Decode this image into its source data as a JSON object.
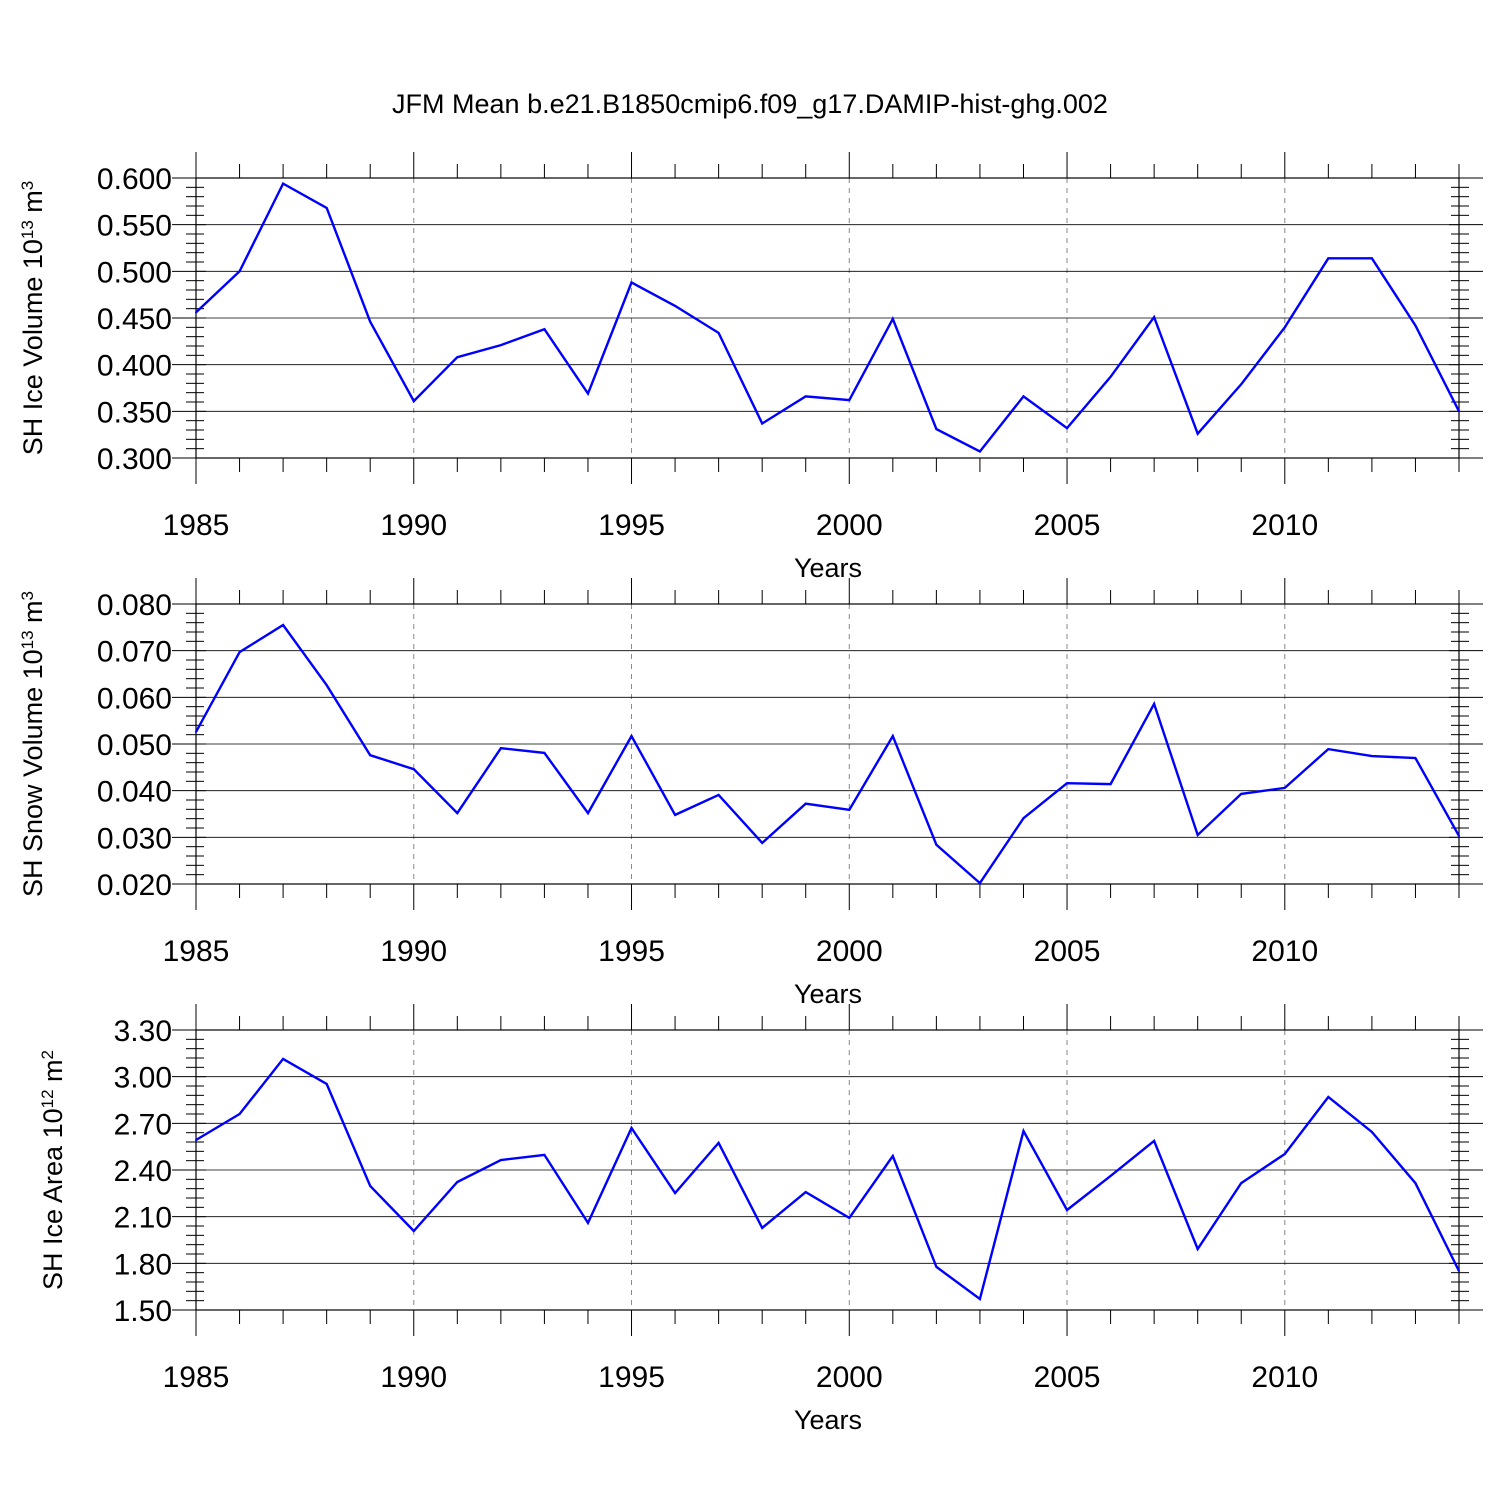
{
  "title": "JFM Mean b.e21.B1850cmip6.f09_g17.DAMIP-hist-ghg.002",
  "series_color": "#0000ff",
  "chart_data": [
    {
      "type": "line",
      "xlabel": "Years",
      "ylabel": "SH Ice Volume 10",
      "ylabel_sup": "13",
      "ylabel_unit": " m",
      "ylabel_unit_sup": "3",
      "xlim": [
        1985,
        2014
      ],
      "ylim": [
        0.3,
        0.6
      ],
      "yticks": [
        "0.300",
        "0.350",
        "0.400",
        "0.450",
        "0.500",
        "0.550",
        "0.600"
      ],
      "xticks": [
        "1985",
        "1990",
        "1995",
        "2000",
        "2005",
        "2010"
      ],
      "grid": "dashed vertical at major x ticks",
      "x": [
        1985,
        1986,
        1987,
        1988,
        1989,
        1990,
        1991,
        1992,
        1993,
        1994,
        1995,
        1996,
        1997,
        1998,
        1999,
        2000,
        2001,
        2002,
        2003,
        2004,
        2005,
        2006,
        2007,
        2008,
        2009,
        2010,
        2011,
        2012,
        2013,
        2014
      ],
      "values": [
        0.456,
        0.5,
        0.594,
        0.568,
        0.446,
        0.361,
        0.408,
        0.421,
        0.438,
        0.369,
        0.488,
        0.463,
        0.434,
        0.337,
        0.366,
        0.362,
        0.449,
        0.331,
        0.307,
        0.366,
        0.332,
        0.387,
        0.451,
        0.326,
        0.379,
        0.44,
        0.514,
        0.514,
        0.442,
        0.35
      ]
    },
    {
      "type": "line",
      "xlabel": "Years",
      "ylabel": "SH Snow Volume 10",
      "ylabel_sup": "13",
      "ylabel_unit": " m",
      "ylabel_unit_sup": "3",
      "xlim": [
        1985,
        2014
      ],
      "ylim": [
        0.02,
        0.08
      ],
      "yticks": [
        "0.020",
        "0.030",
        "0.040",
        "0.050",
        "0.060",
        "0.070",
        "0.080"
      ],
      "xticks": [
        "1985",
        "1990",
        "1995",
        "2000",
        "2005",
        "2010"
      ],
      "grid": "dashed vertical at major x ticks",
      "x": [
        1985,
        1986,
        1987,
        1988,
        1989,
        1990,
        1991,
        1992,
        1993,
        1994,
        1995,
        1996,
        1997,
        1998,
        1999,
        2000,
        2001,
        2002,
        2003,
        2004,
        2005,
        2006,
        2007,
        2008,
        2009,
        2010,
        2011,
        2012,
        2013,
        2014
      ],
      "values": [
        0.0526,
        0.0697,
        0.0755,
        0.0626,
        0.0476,
        0.0446,
        0.0352,
        0.0491,
        0.0481,
        0.0352,
        0.0517,
        0.0348,
        0.0391,
        0.0288,
        0.0372,
        0.0359,
        0.0517,
        0.0284,
        0.0202,
        0.0341,
        0.0416,
        0.0414,
        0.0586,
        0.0305,
        0.0393,
        0.0406,
        0.0489,
        0.0474,
        0.047,
        0.0303
      ]
    },
    {
      "type": "line",
      "xlabel": "Years",
      "ylabel": "SH Ice Area 10",
      "ylabel_sup": "12",
      "ylabel_unit": " m",
      "ylabel_unit_sup": "2",
      "xlim": [
        1985,
        2014
      ],
      "ylim": [
        1.5,
        3.3
      ],
      "yticks": [
        "1.50",
        "1.80",
        "2.10",
        "2.40",
        "2.70",
        "3.00",
        "3.30"
      ],
      "xticks": [
        "1985",
        "1990",
        "1995",
        "2000",
        "2005",
        "2010"
      ],
      "grid": "dashed vertical at major x ticks",
      "x": [
        1985,
        1986,
        1987,
        1988,
        1989,
        1990,
        1991,
        1992,
        1993,
        1994,
        1995,
        1996,
        1997,
        1998,
        1999,
        2000,
        2001,
        2002,
        2003,
        2004,
        2005,
        2006,
        2007,
        2008,
        2009,
        2010,
        2011,
        2012,
        2013,
        2014
      ],
      "values": [
        2.593,
        2.76,
        3.114,
        2.953,
        2.297,
        2.008,
        2.323,
        2.464,
        2.497,
        2.06,
        2.67,
        2.252,
        2.574,
        2.028,
        2.258,
        2.092,
        2.49,
        1.777,
        1.571,
        2.651,
        2.143,
        2.362,
        2.587,
        1.892,
        2.316,
        2.503,
        2.869,
        2.644,
        2.316,
        1.751
      ]
    }
  ]
}
